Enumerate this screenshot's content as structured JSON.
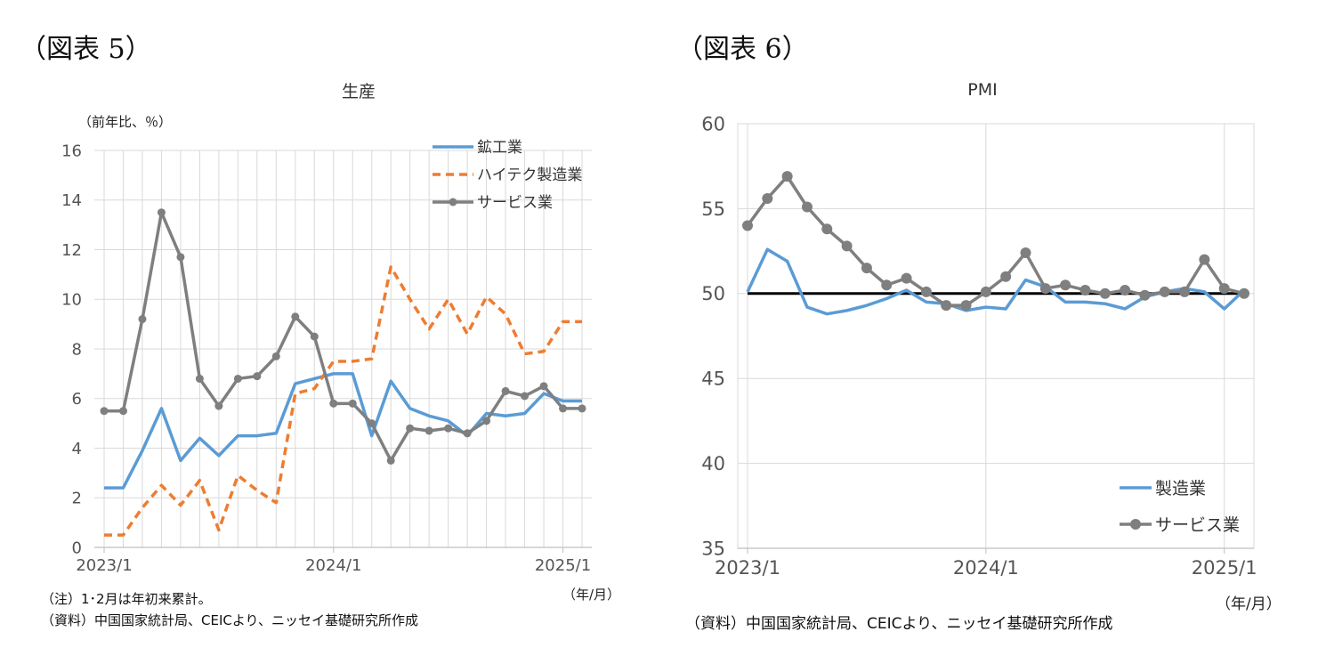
{
  "left_panel": {
    "figure_label": "（図表 5）",
    "unit_label": "（前年比、％）",
    "x_unit": "（年/月）",
    "note": "（注）1･2月は年初来累計。",
    "source": "（資料）中国国家統計局、CEICより、ニッセイ基礎研究所作成"
  },
  "right_panel": {
    "figure_label": "（図表 6）",
    "x_unit": "（年/月）",
    "source": "（資料）中国国家統計局、CEICより、ニッセイ基礎研究所作成"
  },
  "chart_data": [
    {
      "type": "line",
      "title": "生産",
      "ylabel": "（前年比、％）",
      "ylim": [
        0,
        16
      ],
      "yticks": [
        0,
        2,
        4,
        6,
        8,
        10,
        12,
        14,
        16
      ],
      "x_labels": [
        "2023/1",
        "2024/1",
        "2025/1"
      ],
      "x": [
        "2023/1",
        "2023/2",
        "2023/3",
        "2023/4",
        "2023/5",
        "2023/6",
        "2023/7",
        "2023/8",
        "2023/9",
        "2023/10",
        "2023/11",
        "2023/12",
        "2024/1",
        "2024/2",
        "2024/3",
        "2024/4",
        "2024/5",
        "2024/6",
        "2024/7",
        "2024/8",
        "2024/9",
        "2024/10",
        "2024/11",
        "2024/12",
        "2025/1",
        "2025/2"
      ],
      "grid": "vertical",
      "legend_position": "top-right",
      "series": [
        {
          "name": "鉱工業",
          "style": "solid",
          "color": "#5b9bd5",
          "values": [
            2.4,
            2.4,
            3.9,
            5.6,
            3.5,
            4.4,
            3.7,
            4.5,
            4.5,
            4.6,
            6.6,
            6.8,
            7.0,
            7.0,
            4.5,
            6.7,
            5.6,
            5.3,
            5.1,
            4.5,
            5.4,
            5.3,
            5.4,
            6.2,
            5.9,
            5.9
          ]
        },
        {
          "name": "ハイテク製造業",
          "style": "dashed",
          "color": "#ed7d31",
          "values": [
            0.5,
            0.5,
            1.6,
            2.5,
            1.7,
            2.7,
            0.7,
            2.9,
            2.3,
            1.8,
            6.2,
            6.4,
            7.5,
            7.5,
            7.6,
            11.3,
            10.0,
            8.8,
            10.0,
            8.6,
            10.1,
            9.4,
            7.8,
            7.9,
            9.1,
            9.1
          ]
        },
        {
          "name": "サービス業",
          "style": "marker",
          "color": "#7f7f7f",
          "values": [
            5.5,
            5.5,
            9.2,
            13.5,
            11.7,
            6.8,
            5.7,
            6.8,
            6.9,
            7.7,
            9.3,
            8.5,
            5.8,
            5.8,
            5.0,
            3.5,
            4.8,
            4.7,
            4.8,
            4.6,
            5.1,
            6.3,
            6.1,
            6.5,
            5.6,
            5.6
          ]
        }
      ]
    },
    {
      "type": "line",
      "title": "PMI",
      "ylim": [
        35,
        60
      ],
      "yticks": [
        35,
        40,
        45,
        50,
        55,
        60
      ],
      "x_labels": [
        "2023/1",
        "2024/1",
        "2025/1"
      ],
      "x": [
        "2023/1",
        "2023/2",
        "2023/3",
        "2023/4",
        "2023/5",
        "2023/6",
        "2023/7",
        "2023/8",
        "2023/9",
        "2023/10",
        "2023/11",
        "2023/12",
        "2024/1",
        "2024/2",
        "2024/3",
        "2024/4",
        "2024/5",
        "2024/6",
        "2024/7",
        "2024/8",
        "2024/9",
        "2024/10",
        "2024/11",
        "2024/12",
        "2025/1",
        "2025/2"
      ],
      "grid": "both",
      "legend_position": "bottom-right",
      "reference_line": 50,
      "series": [
        {
          "name": "製造業",
          "style": "solid",
          "color": "#5b9bd5",
          "values": [
            50.1,
            52.6,
            51.9,
            49.2,
            48.8,
            49.0,
            49.3,
            49.7,
            50.2,
            49.5,
            49.4,
            49.0,
            49.2,
            49.1,
            50.8,
            50.4,
            49.5,
            49.5,
            49.4,
            49.1,
            49.8,
            50.1,
            50.3,
            50.1,
            49.1,
            50.2
          ]
        },
        {
          "name": "サービス業",
          "style": "marker",
          "color": "#7f7f7f",
          "values": [
            54.0,
            55.6,
            56.9,
            55.1,
            53.8,
            52.8,
            51.5,
            50.5,
            50.9,
            50.1,
            49.3,
            49.3,
            50.1,
            51.0,
            52.4,
            50.3,
            50.5,
            50.2,
            50.0,
            50.2,
            49.9,
            50.1,
            50.1,
            52.0,
            50.3,
            50.0
          ]
        }
      ]
    }
  ]
}
